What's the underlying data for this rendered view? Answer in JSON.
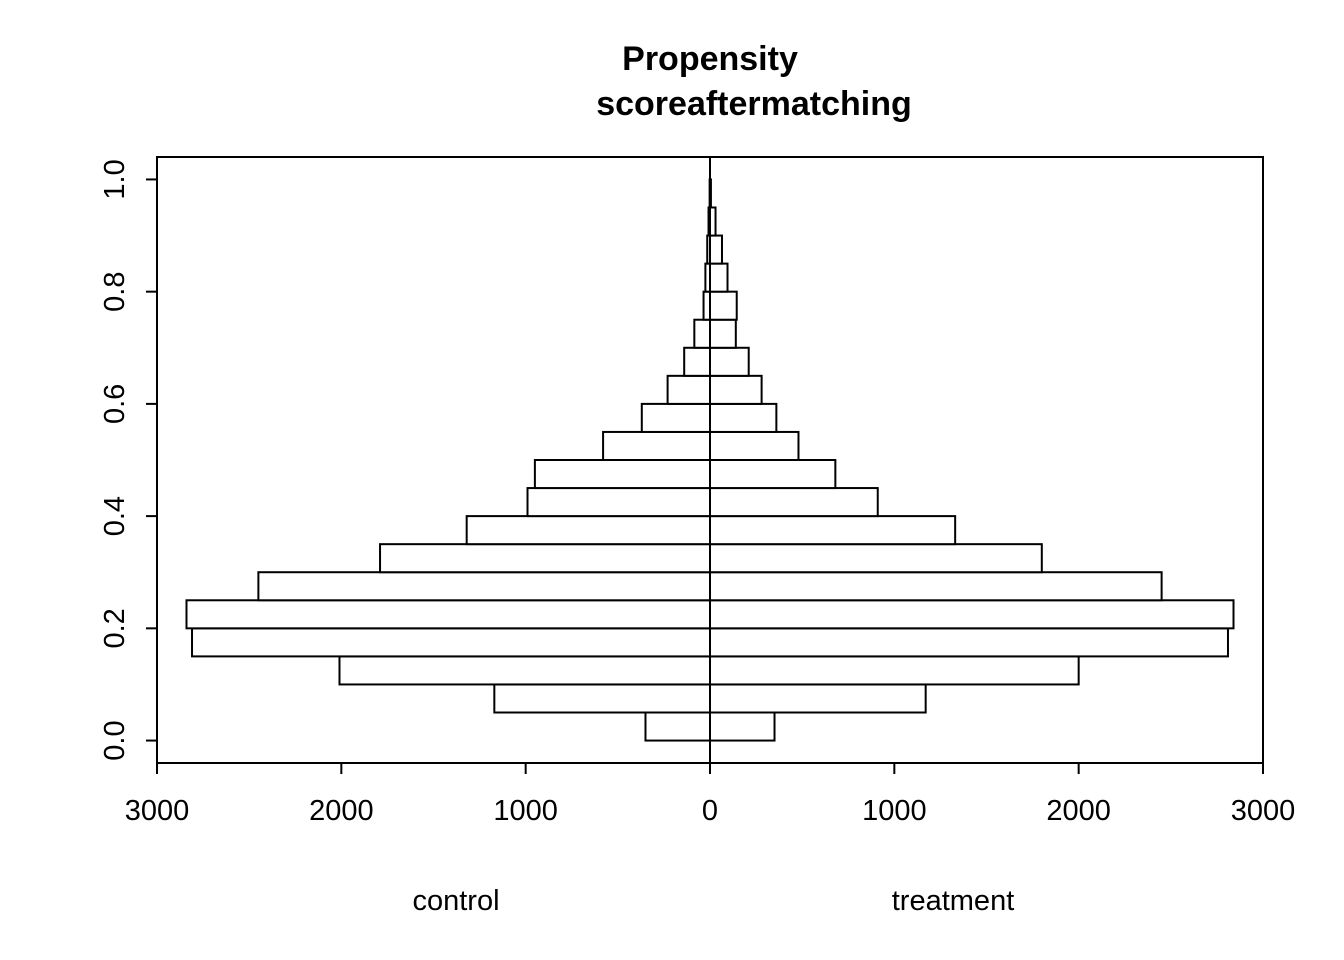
{
  "chart_data": {
    "type": "bar",
    "orientation": "horizontal-back-to-back",
    "title_line1": "Propensity",
    "title_line2": "scoreaftermatching",
    "left_group_label": "control",
    "right_group_label": "treatment",
    "bin_width": 0.05,
    "bins": [
      0.0,
      0.05,
      0.1,
      0.15,
      0.2,
      0.25,
      0.3,
      0.35,
      0.4,
      0.45,
      0.5,
      0.55,
      0.6,
      0.65,
      0.7,
      0.75,
      0.8,
      0.85,
      0.9,
      0.95
    ],
    "series": [
      {
        "name": "control",
        "side": "left",
        "values": [
          350,
          1170,
          2010,
          2810,
          2840,
          2450,
          1790,
          1320,
          990,
          950,
          580,
          370,
          230,
          140,
          85,
          35,
          25,
          15,
          8,
          2
        ]
      },
      {
        "name": "treatment",
        "side": "right",
        "values": [
          350,
          1170,
          2000,
          2810,
          2840,
          2450,
          1800,
          1330,
          910,
          680,
          480,
          360,
          280,
          210,
          140,
          145,
          95,
          65,
          30,
          5
        ]
      }
    ],
    "x_axis": {
      "range": [
        -3000,
        3000
      ],
      "ticks": [
        -3000,
        -2000,
        -1000,
        0,
        1000,
        2000,
        3000
      ],
      "tick_labels": [
        "3000",
        "2000",
        "1000",
        "0",
        "1000",
        "2000",
        "3000"
      ]
    },
    "y_axis": {
      "range": [
        -0.04,
        1.04
      ],
      "ticks": [
        0.0,
        0.2,
        0.4,
        0.6,
        0.8,
        1.0
      ],
      "tick_labels": [
        "0.0",
        "0.2",
        "0.4",
        "0.6",
        "0.8",
        "1.0"
      ]
    },
    "grid": false,
    "legend": "none"
  }
}
